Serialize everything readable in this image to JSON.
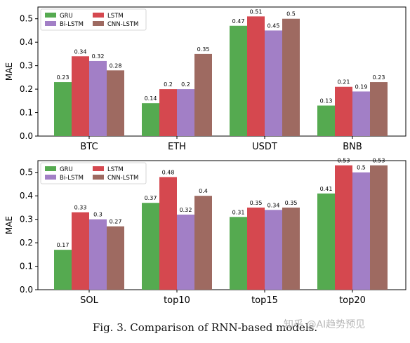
{
  "caption": "Fig. 3.  Comparison of RNN-based models.",
  "watermark": "知乎 @AI趋势预见",
  "colors": {
    "GRU": "#55aa50",
    "LSTM": "#d5484f",
    "Bi-LSTM": "#a27fc6",
    "CNN-LSTM": "#9e6a61"
  },
  "chart_data": [
    {
      "type": "bar",
      "ylabel": "MAE",
      "xlabel": "",
      "ylim": [
        0,
        0.55
      ],
      "yticks": [
        "0.0",
        "0.1",
        "0.2",
        "0.3",
        "0.4",
        "0.5"
      ],
      "grid": false,
      "legend_position": "top-left",
      "categories": [
        "BTC",
        "ETH",
        "USDT",
        "BNB"
      ],
      "series": [
        {
          "name": "GRU",
          "values": [
            0.23,
            0.14,
            0.47,
            0.13
          ],
          "labels": [
            "0.23",
            "0.14",
            "0.47",
            "0.13"
          ]
        },
        {
          "name": "LSTM",
          "values": [
            0.34,
            0.2,
            0.51,
            0.21
          ],
          "labels": [
            "0.34",
            "0.2",
            "0.51",
            "0.21"
          ]
        },
        {
          "name": "Bi-LSTM",
          "values": [
            0.32,
            0.2,
            0.45,
            0.19
          ],
          "labels": [
            "0.32",
            "0.2",
            "0.45",
            "0.19"
          ]
        },
        {
          "name": "CNN-LSTM",
          "values": [
            0.28,
            0.35,
            0.5,
            0.23
          ],
          "labels": [
            "0.28",
            "0.35",
            "0.5",
            "0.23"
          ]
        }
      ]
    },
    {
      "type": "bar",
      "ylabel": "MAE",
      "xlabel": "",
      "ylim": [
        0,
        0.55
      ],
      "yticks": [
        "0.0",
        "0.1",
        "0.2",
        "0.3",
        "0.4",
        "0.5"
      ],
      "grid": false,
      "legend_position": "top-left",
      "categories": [
        "SOL",
        "top10",
        "top15",
        "top20"
      ],
      "series": [
        {
          "name": "GRU",
          "values": [
            0.17,
            0.37,
            0.31,
            0.41
          ],
          "labels": [
            "0.17",
            "0.37",
            "0.31",
            "0.41"
          ]
        },
        {
          "name": "LSTM",
          "values": [
            0.33,
            0.48,
            0.35,
            0.53
          ],
          "labels": [
            "0.33",
            "0.48",
            "0.35",
            "0.53"
          ]
        },
        {
          "name": "Bi-LSTM",
          "values": [
            0.3,
            0.32,
            0.34,
            0.5
          ],
          "labels": [
            "0.3",
            "0.32",
            "0.34",
            "0.5"
          ]
        },
        {
          "name": "CNN-LSTM",
          "values": [
            0.27,
            0.4,
            0.35,
            0.53
          ],
          "labels": [
            "0.27",
            "0.4",
            "0.35",
            "0.53"
          ]
        }
      ]
    }
  ]
}
